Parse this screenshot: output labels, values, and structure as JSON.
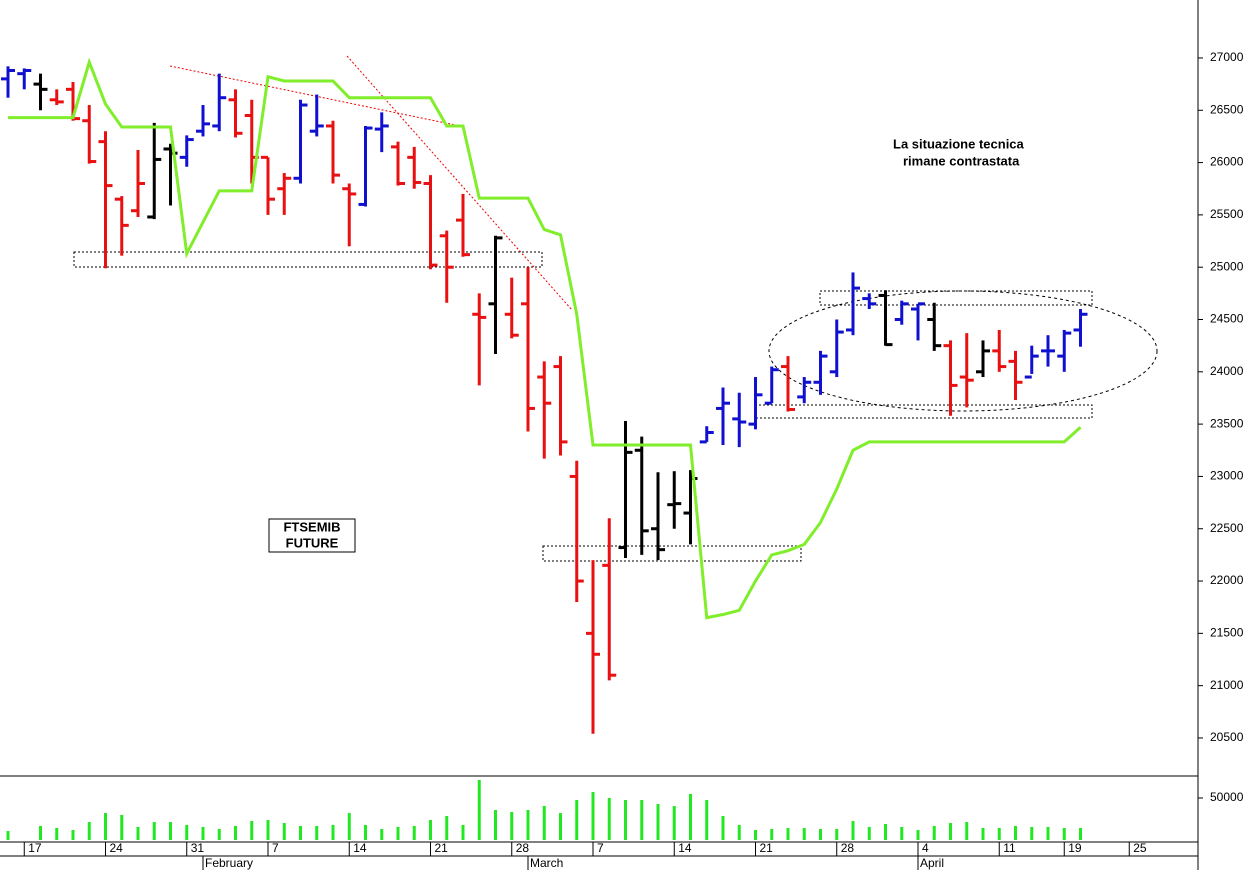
{
  "chart_data": {
    "type": "ohlc",
    "annotation": [
      "La situazione tecnica",
      "rimane contrastata"
    ],
    "label_box": [
      "FTSEMIB",
      "FUTURE"
    ],
    "categories": [
      null,
      "17",
      null,
      null,
      null,
      null,
      "24",
      null,
      null,
      null,
      null,
      "31",
      null,
      null,
      null,
      null,
      "7",
      null,
      null,
      null,
      null,
      "14",
      null,
      null,
      null,
      null,
      "21",
      null,
      null,
      null,
      null,
      "28",
      null,
      null,
      null,
      null,
      "7",
      null,
      null,
      null,
      null,
      "14",
      null,
      null,
      null,
      null,
      "21",
      null,
      null,
      null,
      null,
      "28",
      null,
      null,
      null,
      null,
      "4",
      null,
      null,
      null,
      null,
      "11",
      null,
      null,
      null,
      "19",
      null,
      null,
      null,
      "25"
    ],
    "months": [
      null,
      null,
      null,
      null,
      null,
      null,
      null,
      null,
      null,
      null,
      null,
      null,
      "February",
      null,
      null,
      null,
      null,
      null,
      null,
      null,
      null,
      null,
      null,
      null,
      null,
      null,
      null,
      null,
      null,
      null,
      null,
      null,
      "March",
      null,
      null,
      null,
      null,
      null,
      null,
      null,
      null,
      null,
      null,
      null,
      null,
      null,
      null,
      null,
      null,
      null,
      null,
      null,
      null,
      null,
      null,
      null,
      "April",
      null,
      null,
      null,
      null,
      null,
      null,
      null,
      null,
      null,
      null,
      null,
      null,
      null,
      null
    ],
    "open": [
      26800,
      26850,
      26750,
      26600,
      26700,
      26400,
      26200,
      25650,
      25540,
      25480,
      26130,
      26050,
      26300,
      26350,
      26600,
      26450,
      26050,
      25750,
      25850,
      26300,
      26350,
      25750,
      25600,
      26320,
      26150,
      26050,
      25800,
      25300,
      25450,
      24550,
      24650,
      24550,
      24650,
      23950,
      24050,
      23000,
      21500,
      22150,
      22320,
      23250,
      22500,
      22730,
      22650,
      23330,
      23650,
      23550,
      23500,
      23700,
      24050,
      23760,
      23900,
      24000,
      24400,
      24700,
      24730,
      24500,
      24600,
      24500,
      24250,
      23950,
      24000,
      24200,
      24100,
      23950,
      24200,
      24150,
      24400,
      null,
      null,
      null
    ],
    "high": [
      26920,
      26900,
      26850,
      26700,
      26770,
      26550,
      26300,
      25680,
      26120,
      26380,
      26180,
      26260,
      26550,
      26850,
      26700,
      26600,
      26050,
      25900,
      26600,
      26650,
      26400,
      25800,
      26350,
      26480,
      26200,
      26150,
      25880,
      25350,
      25700,
      24750,
      25300,
      24900,
      25000,
      24100,
      24150,
      23150,
      22200,
      22600,
      23530,
      23380,
      23040,
      23050,
      23060,
      23480,
      23850,
      23800,
      23950,
      24050,
      24150,
      23950,
      24200,
      24500,
      24950,
      24750,
      24780,
      24680,
      24650,
      24660,
      24300,
      24370,
      24300,
      24400,
      24200,
      24250,
      24350,
      24400,
      24600,
      null,
      null,
      null
    ],
    "low": [
      26620,
      26700,
      26500,
      26550,
      26400,
      25990,
      24990,
      25110,
      25480,
      25460,
      25590,
      25960,
      26250,
      26300,
      26240,
      25800,
      25500,
      25500,
      25800,
      26250,
      25800,
      25200,
      25580,
      26100,
      25780,
      25750,
      24980,
      24660,
      25100,
      23870,
      24170,
      24320,
      23430,
      23170,
      23200,
      21800,
      20540,
      21050,
      22220,
      22250,
      22200,
      22500,
      22350,
      23330,
      23300,
      23280,
      23450,
      23700,
      23620,
      23700,
      23780,
      23950,
      24350,
      24600,
      24250,
      24450,
      24300,
      24200,
      23580,
      23660,
      23950,
      24000,
      23730,
      23980,
      24050,
      24000,
      24240,
      null,
      null,
      null
    ],
    "close": [
      26880,
      26880,
      26700,
      26580,
      26420,
      26010,
      25780,
      25400,
      25800,
      26030,
      26090,
      26220,
      26370,
      26620,
      26280,
      26050,
      25650,
      25850,
      26550,
      26350,
      25880,
      25700,
      26330,
      26350,
      25800,
      25810,
      25020,
      25000,
      25120,
      24520,
      25280,
      24350,
      23650,
      23700,
      23330,
      22000,
      21300,
      21100,
      23230,
      22480,
      22300,
      22740,
      22980,
      23420,
      23700,
      23520,
      23780,
      24020,
      23640,
      23900,
      24150,
      24380,
      24800,
      24650,
      24260,
      24650,
      24650,
      24250,
      23870,
      23920,
      24200,
      24050,
      23900,
      24150,
      24200,
      24370,
      24550,
      null,
      null,
      null
    ],
    "colors": [
      "#1010d0",
      "#1010d0",
      "#000000",
      "#e81010",
      "#e81010",
      "#e81010",
      "#e81010",
      "#e81010",
      "#e81010",
      "#000000",
      "#000000",
      "#1010d0",
      "#1010d0",
      "#1010d0",
      "#e81010",
      "#e81010",
      "#e81010",
      "#e81010",
      "#1010d0",
      "#1010d0",
      "#e81010",
      "#e81010",
      "#1010d0",
      "#1010d0",
      "#e81010",
      "#e81010",
      "#e81010",
      "#e81010",
      "#e81010",
      "#e81010",
      "#000000",
      "#e81010",
      "#e81010",
      "#e81010",
      "#e81010",
      "#e81010",
      "#e81010",
      "#e81010",
      "#000000",
      "#000000",
      "#000000",
      "#000000",
      "#000000",
      "#1010d0",
      "#1010d0",
      "#1010d0",
      "#1010d0",
      "#1010d0",
      "#e81010",
      "#1010d0",
      "#1010d0",
      "#1010d0",
      "#1010d0",
      "#1010d0",
      "#000000",
      "#1010d0",
      "#1010d0",
      "#000000",
      "#e81010",
      "#e81010",
      "#000000",
      "#e81010",
      "#e81010",
      "#1010d0",
      "#1010d0",
      "#1010d0",
      "#1010d0",
      null,
      null,
      null
    ],
    "overlay": {
      "color": "#80ee2a",
      "values": [
        26430,
        26430,
        26430,
        26430,
        26430,
        26960,
        26560,
        26340,
        26340,
        26340,
        26340,
        25130,
        25430,
        25730,
        25730,
        25730,
        26820,
        26780,
        26780,
        26780,
        26780,
        26620,
        26620,
        26620,
        26620,
        26620,
        26620,
        26350,
        26350,
        25660,
        25660,
        25660,
        25660,
        25360,
        25310,
        24550,
        23300,
        23300,
        23300,
        23300,
        23300,
        23300,
        23300,
        21650,
        21680,
        21720,
        22000,
        22250,
        22290,
        22350,
        22560,
        22880,
        23250,
        23330,
        23330,
        23330,
        23330,
        23330,
        23330,
        23330,
        23330,
        23330,
        23330,
        23330,
        23330,
        23330,
        23470,
        null,
        null,
        null
      ]
    },
    "ylim": [
      20146,
      27554
    ],
    "yticks": [
      20500,
      21000,
      21500,
      22000,
      22500,
      23000,
      23500,
      24000,
      24500,
      25000,
      25500,
      26000,
      26500,
      27000
    ],
    "volume": {
      "color": "#22e822",
      "values": [
        10700,
        null,
        16700,
        14300,
        11900,
        21400,
        32100,
        29800,
        15500,
        21400,
        21400,
        17900,
        15500,
        13100,
        16700,
        22600,
        23800,
        20200,
        16700,
        16700,
        17900,
        32100,
        17900,
        13100,
        15500,
        16700,
        23800,
        28600,
        17900,
        71400,
        35700,
        33300,
        35700,
        40500,
        32100,
        47600,
        57100,
        50000,
        47600,
        47600,
        42900,
        40500,
        54800,
        47600,
        28600,
        17900,
        11900,
        13100,
        14300,
        14300,
        13100,
        13100,
        22600,
        15500,
        19000,
        15500,
        11900,
        16700,
        20200,
        21400,
        14300,
        14300,
        16700,
        15500,
        15500,
        14300,
        14300,
        null,
        null,
        null
      ],
      "ylim": [
        0,
        75000
      ],
      "yticks": [
        50000
      ]
    }
  }
}
